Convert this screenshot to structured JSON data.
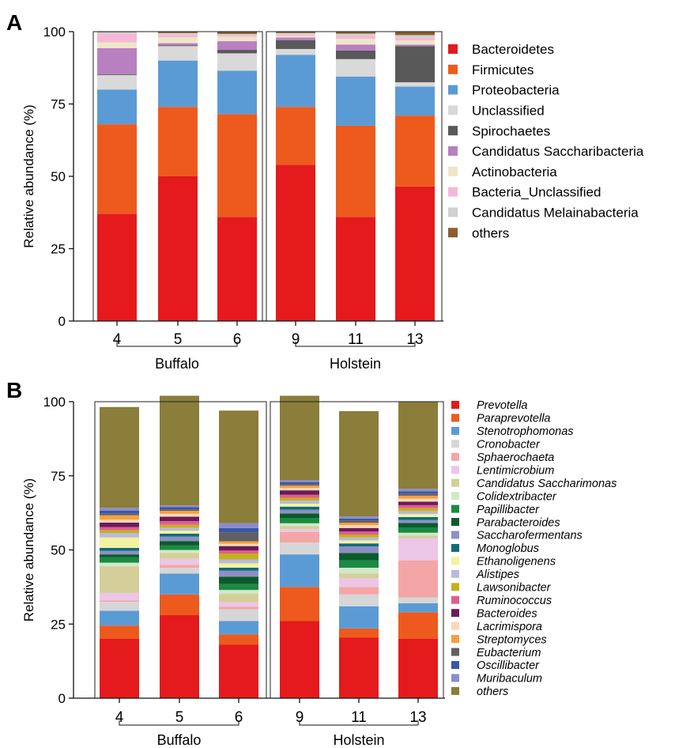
{
  "chart_data": [
    {
      "panel_label": "A",
      "type": "bar",
      "stacked": true,
      "ylabel": "Relative abundance (%)",
      "ylim": [
        0,
        100
      ],
      "yticks": [
        "0",
        "25",
        "50",
        "75",
        "100"
      ],
      "categories": [
        "4",
        "5",
        "6",
        "9",
        "11",
        "13"
      ],
      "groups": [
        {
          "name": "Buffalo",
          "categories": [
            "4",
            "5",
            "6"
          ]
        },
        {
          "name": "Holstein",
          "categories": [
            "9",
            "11",
            "13"
          ]
        }
      ],
      "legend_position": "right",
      "series": [
        {
          "name": "Bacteroidetes",
          "color": "#e41a1c",
          "values": [
            37,
            50,
            36,
            54,
            36,
            46.5
          ]
        },
        {
          "name": "Firmicutes",
          "color": "#ee5a1d",
          "values": [
            31,
            24,
            35.5,
            20,
            31.5,
            24.5
          ]
        },
        {
          "name": "Proteobacteria",
          "color": "#5b9bd5",
          "values": [
            12,
            16,
            15,
            18,
            17,
            10
          ]
        },
        {
          "name": "Unclassified",
          "color": "#d9d9d9",
          "values": [
            5,
            5,
            6,
            2,
            6,
            1.5
          ]
        },
        {
          "name": "Spirochaetes",
          "color": "#595959",
          "values": [
            0.3,
            0.3,
            1.2,
            3,
            3,
            12.5
          ]
        },
        {
          "name": "Candidatus Saccharibacteria",
          "color": "#b87fc1",
          "values": [
            9,
            0.7,
            3,
            1,
            2,
            0.5
          ]
        },
        {
          "name": "Actinobacteria",
          "color": "#efe6c8",
          "values": [
            2,
            2,
            1.5,
            0.5,
            2,
            1.5
          ]
        },
        {
          "name": "Bacteria_Unclassified",
          "color": "#f6b8d6",
          "values": [
            3,
            1,
            0.5,
            0.5,
            1,
            1
          ]
        },
        {
          "name": "Candidatus Melainabacteria",
          "color": "#d0d0d0",
          "values": [
            0.5,
            0.5,
            0.5,
            0.5,
            0.8,
            0.8
          ]
        },
        {
          "name": "others",
          "color": "#8b5e2b",
          "values": [
            0.2,
            0.5,
            0.8,
            0.5,
            0.7,
            1.2
          ]
        }
      ]
    },
    {
      "panel_label": "B",
      "type": "bar",
      "stacked": true,
      "ylabel": "Relative abundance (%)",
      "ylim": [
        0,
        100
      ],
      "yticks": [
        "0",
        "25",
        "50",
        "75",
        "100"
      ],
      "categories": [
        "4",
        "5",
        "6",
        "9",
        "11",
        "13"
      ],
      "groups": [
        {
          "name": "Buffalo",
          "categories": [
            "4",
            "5",
            "6"
          ]
        },
        {
          "name": "Holstein",
          "categories": [
            "9",
            "11",
            "13"
          ]
        }
      ],
      "legend_position": "right",
      "series": [
        {
          "name": "Prevotella",
          "color": "#e41a1c",
          "values": [
            20,
            28,
            18,
            26,
            20.5,
            20
          ]
        },
        {
          "name": "Paraprevotella",
          "color": "#ee5a1d",
          "values": [
            4.5,
            7,
            3.5,
            11.5,
            3,
            9
          ]
        },
        {
          "name": "Stenotrophomonas",
          "color": "#5b9bd5",
          "values": [
            5,
            7,
            4.5,
            11,
            7.5,
            3
          ]
        },
        {
          "name": "Cronobacter",
          "color": "#d6d6d6",
          "values": [
            3,
            2,
            4,
            4,
            4,
            2
          ]
        },
        {
          "name": "Sphaerochaeta",
          "color": "#f4a6a6",
          "values": [
            0.5,
            1,
            0.8,
            3.5,
            2.5,
            12.5
          ]
        },
        {
          "name": "Lentimicrobium",
          "color": "#ecc6e6",
          "values": [
            2.5,
            2,
            1.5,
            1,
            3,
            7.5
          ]
        },
        {
          "name": "Candidatus Saccharimonas",
          "color": "#d4cf9a",
          "values": [
            9,
            2,
            3,
            1,
            1.5,
            0.8
          ]
        },
        {
          "name": "Colidextribacter",
          "color": "#cfe9c7",
          "values": [
            1.2,
            1,
            1.2,
            1,
            2,
            1
          ]
        },
        {
          "name": "Papillibacter",
          "color": "#1b8a42",
          "values": [
            1.8,
            1.5,
            2,
            1.8,
            2.5,
            1.8
          ]
        },
        {
          "name": "Parabacteroides",
          "color": "#0b5a2b",
          "values": [
            1,
            1.5,
            2.5,
            1.5,
            2.5,
            1.5
          ]
        },
        {
          "name": "Saccharofermentans",
          "color": "#8e8fc4",
          "values": [
            1.2,
            1.5,
            2,
            1.3,
            2.2,
            1
          ]
        },
        {
          "name": "Monoglobus",
          "color": "#0f6b7a",
          "values": [
            1,
            1,
            1,
            1,
            1,
            1
          ]
        },
        {
          "name": "Ethanoligenens",
          "color": "#f2f2a0",
          "values": [
            3.5,
            1,
            1.5,
            1,
            1,
            1
          ]
        },
        {
          "name": "Alistipes",
          "color": "#b9b9dc",
          "values": [
            1.5,
            1,
            1.3,
            1,
            1,
            1
          ]
        },
        {
          "name": "Lawsonibacter",
          "color": "#c2b21b",
          "values": [
            1,
            1,
            2,
            1,
            1,
            1
          ]
        },
        {
          "name": "Ruminococcus",
          "color": "#e45c8c",
          "values": [
            1,
            1.2,
            1,
            1,
            1,
            1
          ]
        },
        {
          "name": "Bacteroides",
          "color": "#6a1b5c",
          "values": [
            1.5,
            1.5,
            1.5,
            1.5,
            1.2,
            1.2
          ]
        },
        {
          "name": "Lacrimispora",
          "color": "#fbd9b5",
          "values": [
            1,
            1,
            0.8,
            0.8,
            1,
            1
          ]
        },
        {
          "name": "Streptomyces",
          "color": "#f4a040",
          "values": [
            1.5,
            1,
            0.8,
            0.8,
            0.8,
            1
          ]
        },
        {
          "name": "Eubacterium",
          "color": "#606060",
          "values": [
            0.5,
            0.5,
            3,
            0.5,
            0.7,
            0.7
          ]
        },
        {
          "name": "Oscillibacter",
          "color": "#3a56a8",
          "values": [
            1,
            0.7,
            1.5,
            0.7,
            0.7,
            0.8
          ]
        },
        {
          "name": "Muribaculum",
          "color": "#8c8ccc",
          "values": [
            1,
            0.6,
            1.6,
            0.6,
            0.7,
            0.8
          ]
        },
        {
          "name": "others",
          "color": "#8b7d3a",
          "values": [
            34,
            37,
            38,
            28.5,
            35.5,
            29.3
          ]
        }
      ]
    }
  ]
}
